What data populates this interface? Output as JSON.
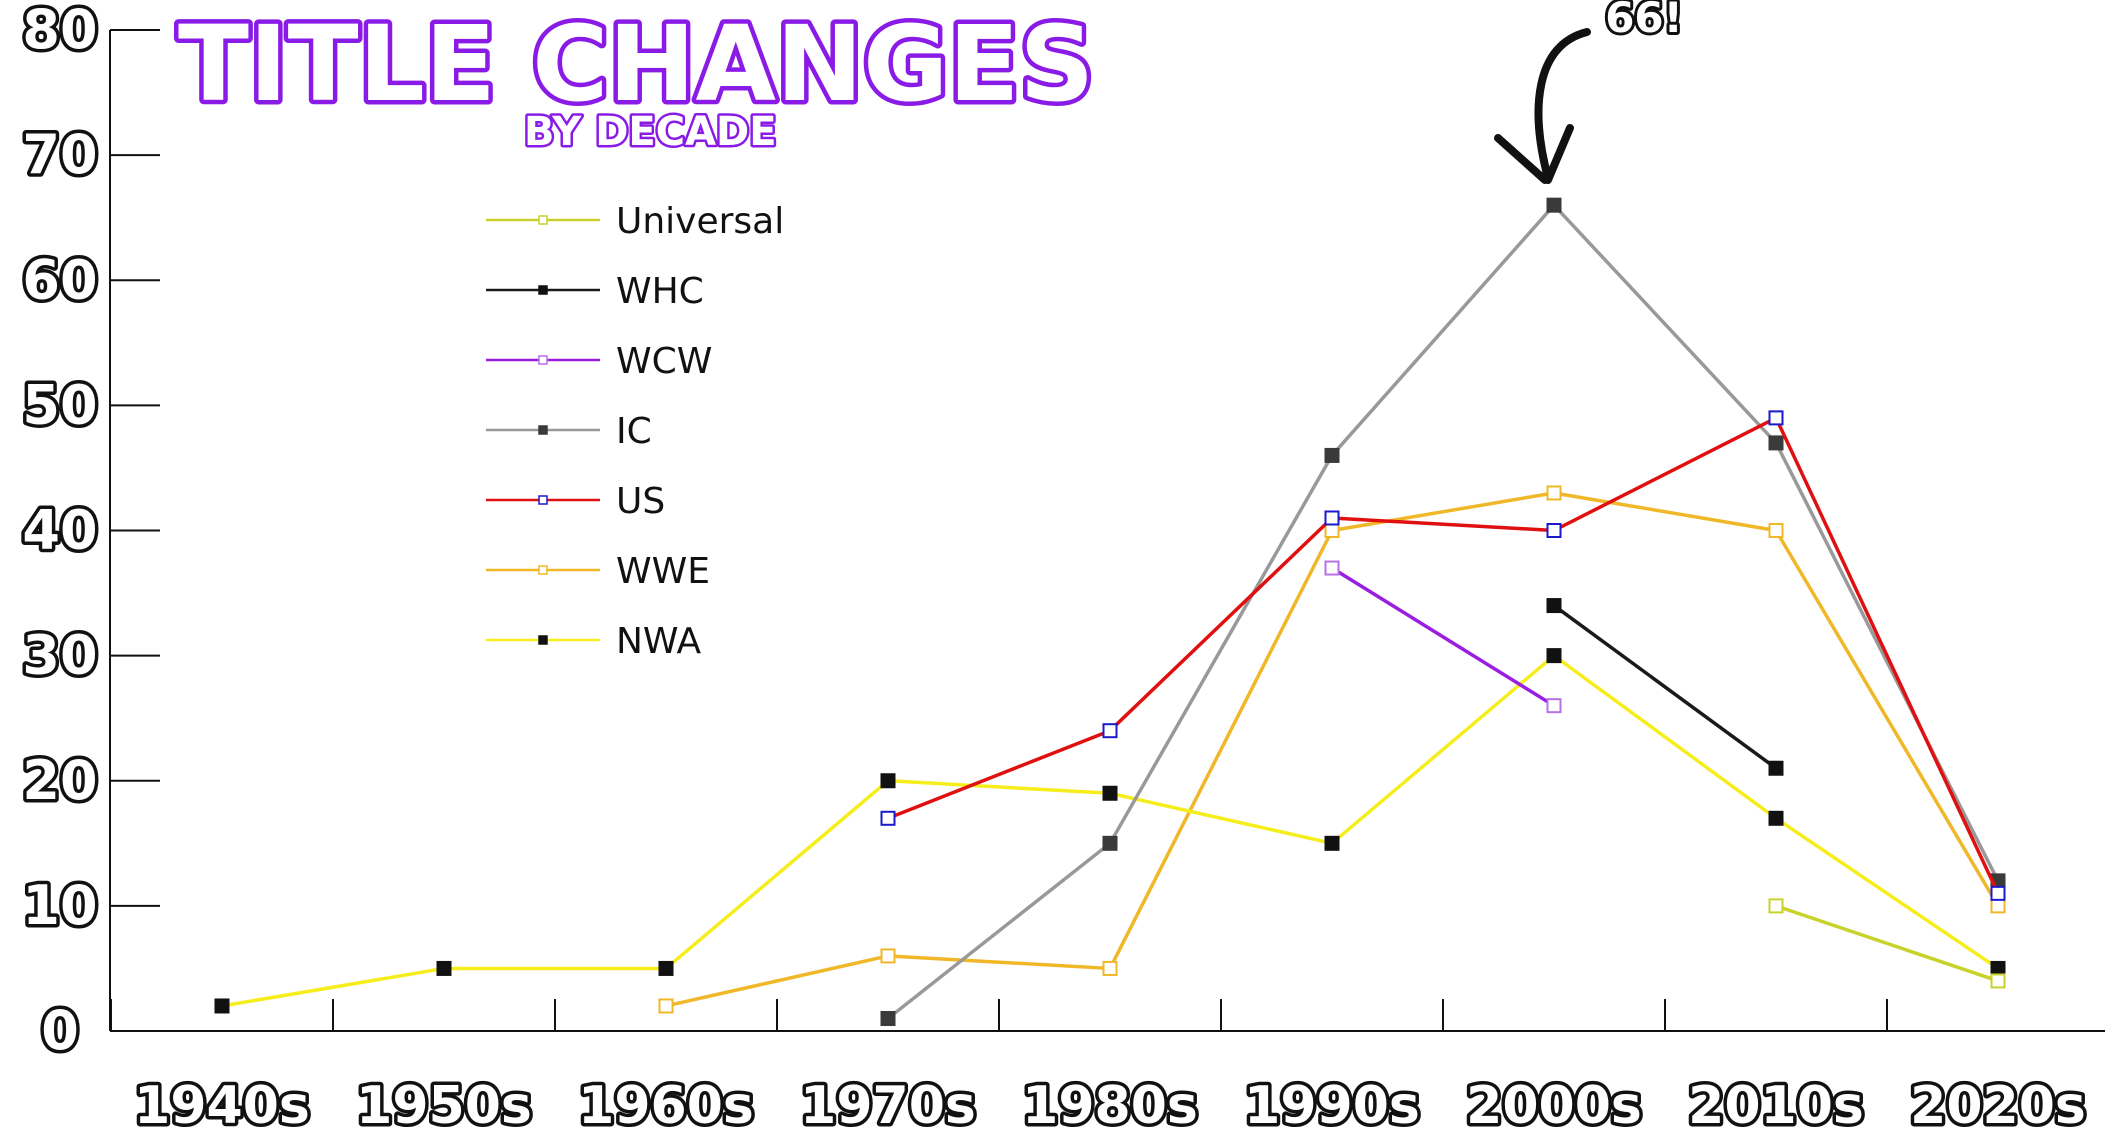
{
  "chart_data": {
    "type": "line",
    "title": "TITLE CHANGES",
    "subtitle": "BY DECADE",
    "xlabel": "",
    "ylabel": "",
    "categories": [
      "1940s",
      "1950s",
      "1960s",
      "1970s",
      "1980s",
      "1990s",
      "2000s",
      "2010s",
      "2020s"
    ],
    "ylim": [
      0,
      80
    ],
    "yticks": [
      0,
      10,
      20,
      30,
      40,
      50,
      60,
      70,
      80
    ],
    "grid": false,
    "legend": "upper-left-inside",
    "annotation": {
      "text": "66!",
      "category": "2000s",
      "value": 66
    },
    "series": [
      {
        "name": "Universal",
        "color": "#c8d22a",
        "marker": "hollow",
        "values": [
          null,
          null,
          null,
          null,
          null,
          null,
          null,
          10,
          4
        ]
      },
      {
        "name": "WHC",
        "color": "#1a1a1a",
        "marker": "filled",
        "values": [
          null,
          null,
          null,
          null,
          null,
          null,
          34,
          21,
          null
        ]
      },
      {
        "name": "WCW",
        "color": "#9a1ee0",
        "marker": "hollow",
        "values": [
          null,
          null,
          null,
          null,
          null,
          37,
          26,
          null,
          null
        ]
      },
      {
        "name": "IC",
        "color": "#999999",
        "marker": "filled-dark",
        "values": [
          null,
          null,
          null,
          1,
          15,
          46,
          66,
          47,
          12
        ]
      },
      {
        "name": "US",
        "color": "#e01010",
        "marker": "hollow-blue",
        "values": [
          null,
          null,
          null,
          17,
          24,
          41,
          40,
          49,
          11
        ]
      },
      {
        "name": "WWE",
        "color": "#f0b828",
        "marker": "hollow",
        "values": [
          null,
          null,
          2,
          6,
          5,
          40,
          43,
          40,
          10
        ]
      },
      {
        "name": "NWA",
        "color": "#f6ee1c",
        "marker": "filled",
        "values": [
          2,
          5,
          5,
          20,
          19,
          15,
          30,
          17,
          5
        ]
      }
    ]
  }
}
